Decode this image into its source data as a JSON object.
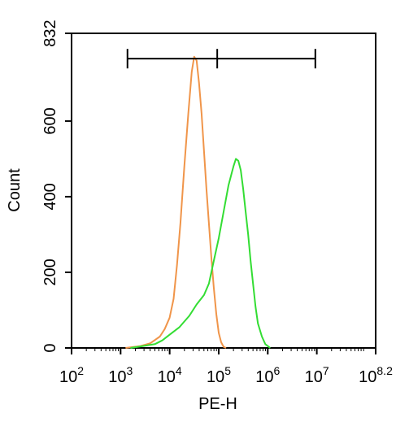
{
  "chart_data": {
    "type": "line",
    "title": "",
    "xlabel": "PE-H",
    "ylabel": "Count",
    "xscale": "log10",
    "xlim": [
      2,
      8.2
    ],
    "ylim": [
      0,
      832
    ],
    "x_tick_labels": [
      {
        "base": "10",
        "exp": "2",
        "value": 2
      },
      {
        "base": "10",
        "exp": "3",
        "value": 3
      },
      {
        "base": "10",
        "exp": "4",
        "value": 4
      },
      {
        "base": "10",
        "exp": "5",
        "value": 5
      },
      {
        "base": "10",
        "exp": "6",
        "value": 6
      },
      {
        "base": "10",
        "exp": "7",
        "value": 7
      },
      {
        "base": "10",
        "exp": "8.2",
        "value": 8.2
      }
    ],
    "y_ticks": [
      0,
      200,
      400,
      600,
      832
    ],
    "grid": false,
    "legend": "none",
    "gate": {
      "x_left": 3.14,
      "x_mid": 4.97,
      "x_right": 6.97,
      "y": 765
    },
    "series": [
      {
        "color": "#f0954a",
        "points": [
          [
            3.1,
            0
          ],
          [
            3.4,
            5
          ],
          [
            3.6,
            12
          ],
          [
            3.8,
            30
          ],
          [
            3.9,
            50
          ],
          [
            4.0,
            80
          ],
          [
            4.08,
            130
          ],
          [
            4.15,
            220
          ],
          [
            4.22,
            330
          ],
          [
            4.3,
            480
          ],
          [
            4.38,
            620
          ],
          [
            4.45,
            730
          ],
          [
            4.5,
            770
          ],
          [
            4.55,
            760
          ],
          [
            4.6,
            700
          ],
          [
            4.65,
            620
          ],
          [
            4.7,
            520
          ],
          [
            4.75,
            420
          ],
          [
            4.8,
            330
          ],
          [
            4.85,
            240
          ],
          [
            4.9,
            160
          ],
          [
            4.95,
            90
          ],
          [
            5.0,
            40
          ],
          [
            5.05,
            15
          ],
          [
            5.1,
            3
          ],
          [
            5.15,
            0
          ]
        ]
      },
      {
        "color": "#33dd33",
        "points": [
          [
            3.2,
            0
          ],
          [
            3.5,
            6
          ],
          [
            3.7,
            10
          ],
          [
            3.85,
            20
          ],
          [
            4.0,
            35
          ],
          [
            4.2,
            55
          ],
          [
            4.4,
            85
          ],
          [
            4.55,
            115
          ],
          [
            4.7,
            140
          ],
          [
            4.8,
            170
          ],
          [
            4.9,
            230
          ],
          [
            5.0,
            290
          ],
          [
            5.1,
            360
          ],
          [
            5.2,
            430
          ],
          [
            5.3,
            480
          ],
          [
            5.35,
            500
          ],
          [
            5.4,
            495
          ],
          [
            5.45,
            470
          ],
          [
            5.5,
            420
          ],
          [
            5.55,
            360
          ],
          [
            5.6,
            300
          ],
          [
            5.65,
            230
          ],
          [
            5.7,
            170
          ],
          [
            5.75,
            110
          ],
          [
            5.8,
            65
          ],
          [
            5.88,
            30
          ],
          [
            5.95,
            10
          ],
          [
            6.05,
            0
          ]
        ]
      }
    ]
  }
}
